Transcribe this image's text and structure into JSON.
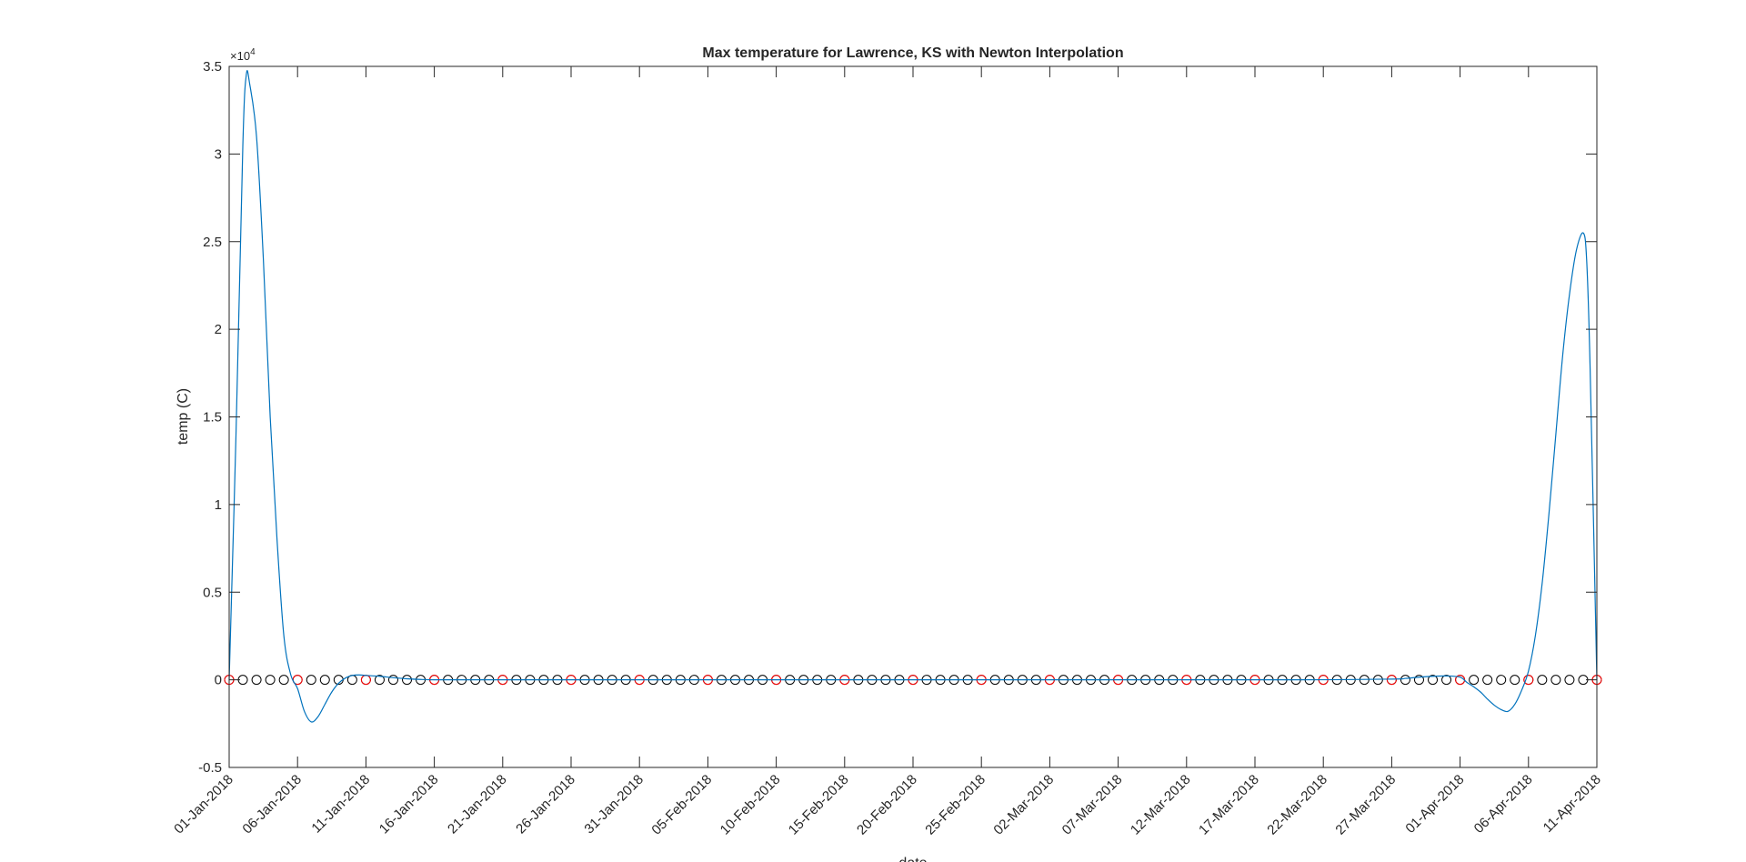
{
  "chart_data": {
    "type": "line",
    "title": "Max temperature for Lawrence, KS with Newton Interpolation",
    "xlabel": "date",
    "ylabel": "temp (C)",
    "exponent_label": "×10",
    "exponent_power": "4",
    "y_tick_labels": [
      "-0.5",
      "0",
      "0.5",
      "1",
      "1.5",
      "2",
      "2.5",
      "3",
      "3.5"
    ],
    "ylim": [
      -5000,
      35000
    ],
    "x_tick_labels": [
      "01-Jan-2018",
      "06-Jan-2018",
      "11-Jan-2018",
      "16-Jan-2018",
      "21-Jan-2018",
      "26-Jan-2018",
      "31-Jan-2018",
      "05-Feb-2018",
      "10-Feb-2018",
      "15-Feb-2018",
      "20-Feb-2018",
      "25-Feb-2018",
      "02-Mar-2018",
      "07-Mar-2018",
      "12-Mar-2018",
      "17-Mar-2018",
      "22-Mar-2018",
      "27-Mar-2018",
      "01-Apr-2018",
      "06-Apr-2018",
      "11-Apr-2018"
    ],
    "xlim": [
      "01-Jan-2018",
      "11-Apr-2018"
    ],
    "grid": false,
    "box": true,
    "series": [
      {
        "type": "line",
        "color": "#0072bd",
        "x": [
          "01-Jan-2018",
          "01-Jan-2018 12:00",
          "02-Jan-2018",
          "02-Jan-2018 06:00",
          "02-Jan-2018 12:00",
          "03-Jan-2018",
          "03-Jan-2018 12:00",
          "04-Jan-2018",
          "04-Jan-2018 12:00",
          "05-Jan-2018",
          "05-Jan-2018 12:00",
          "06-Jan-2018",
          "06-Jan-2018 12:00",
          "07-Jan-2018",
          "07-Jan-2018 12:00",
          "08-Jan-2018",
          "08-Jan-2018 12:00",
          "09-Jan-2018",
          "09-Jan-2018 12:00",
          "10-Jan-2018",
          "10-Jan-2018 12:00",
          "11-Jan-2018",
          "12-Jan-2018",
          "13-Jan-2018",
          "14-Jan-2018",
          "15-Jan-2018",
          "16-Jan-2018",
          "18-Jan-2018",
          "20-Jan-2018",
          "01-Feb-2018",
          "01-Mar-2018",
          "20-Mar-2018",
          "27-Mar-2018",
          "28-Mar-2018",
          "29-Mar-2018",
          "30-Mar-2018",
          "31-Mar-2018",
          "01-Apr-2018",
          "01-Apr-2018 12:00",
          "02-Apr-2018",
          "02-Apr-2018 12:00",
          "03-Apr-2018",
          "03-Apr-2018 12:00",
          "04-Apr-2018",
          "04-Apr-2018 12:00",
          "05-Apr-2018",
          "05-Apr-2018 12:00",
          "06-Apr-2018",
          "06-Apr-2018 12:00",
          "07-Apr-2018",
          "07-Apr-2018 12:00",
          "08-Apr-2018",
          "08-Apr-2018 12:00",
          "09-Apr-2018",
          "09-Apr-2018 12:00",
          "10-Apr-2018",
          "10-Apr-2018 06:00",
          "10-Apr-2018 12:00",
          "11-Apr-2018"
        ],
        "y": [
          0,
          14000,
          30500,
          34500,
          34000,
          31000,
          24000,
          15000,
          8000,
          2500,
          300,
          -500,
          -1800,
          -2400,
          -2100,
          -1400,
          -700,
          -200,
          100,
          250,
          280,
          250,
          200,
          120,
          60,
          20,
          0,
          0,
          0,
          0,
          0,
          0,
          40,
          80,
          150,
          200,
          220,
          150,
          -150,
          -400,
          -700,
          -1100,
          -1450,
          -1700,
          -1800,
          -1400,
          -600,
          500,
          2500,
          5500,
          9500,
          14000,
          18500,
          22000,
          24500,
          25500,
          24000,
          18000,
          0
        ]
      },
      {
        "type": "scatter",
        "marker": "o",
        "color": "#000000",
        "name": "",
        "x_start": "01-Jan-2018",
        "x_end": "11-Apr-2018",
        "step_days": 1,
        "y": 0
      },
      {
        "type": "scatter",
        "marker": "o",
        "color": "#ff0000",
        "name": "",
        "x_start": "01-Jan-2018",
        "x_end": "11-Apr-2018",
        "step_days": 5,
        "y": 0
      }
    ]
  }
}
